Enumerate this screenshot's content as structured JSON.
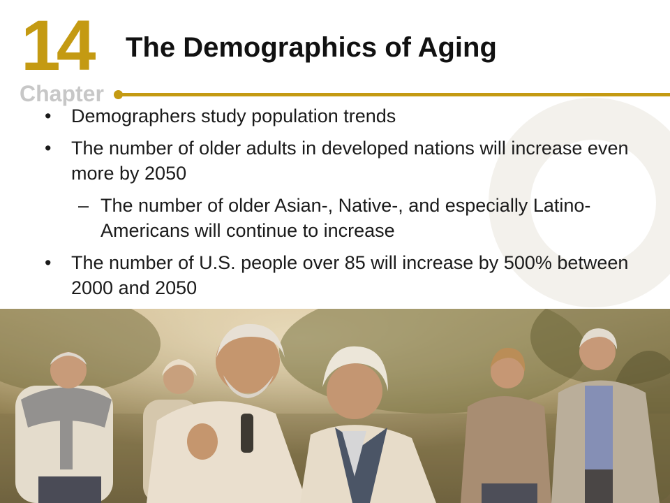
{
  "chapter": {
    "number": "14",
    "word": "Chapter"
  },
  "slide": {
    "title": "The Demographics of Aging"
  },
  "bullets": [
    {
      "level": 1,
      "marker": "•",
      "text": "Demographers study population trends"
    },
    {
      "level": 1,
      "marker": "•",
      "text": "The number of older adults in developed nations will increase even more by 2050"
    },
    {
      "level": 2,
      "marker": "–",
      "text": "The number of older Asian-, Native-, and especially Latino-Americans will continue to increase"
    },
    {
      "level": 1,
      "marker": "•",
      "text": "The number of U.S. people over 85 will increase by 500% between 2000 and 2050"
    }
  ],
  "colors": {
    "accent": "#c49a12",
    "chapter_word": "#c7c7c7",
    "text": "#1a1a1a"
  },
  "photo": {
    "subject": "group-of-older-adults-walking-photo"
  }
}
